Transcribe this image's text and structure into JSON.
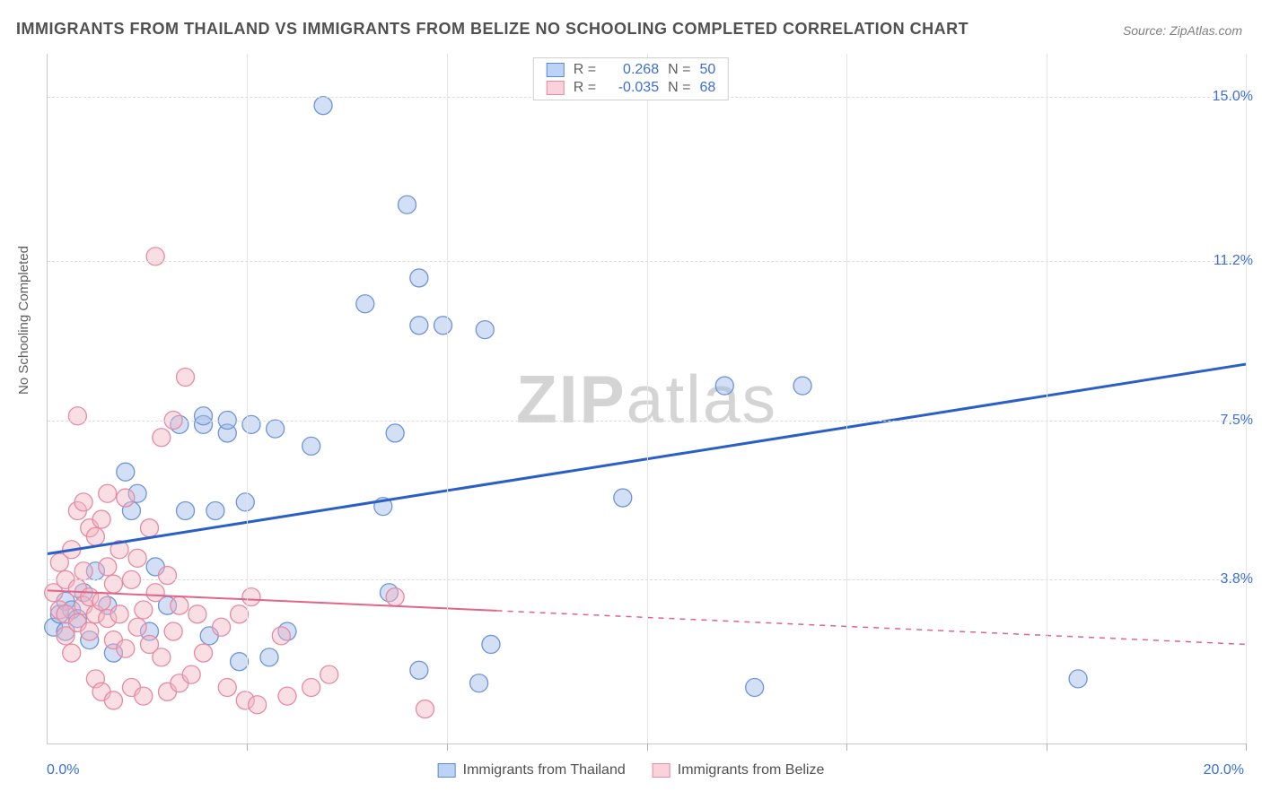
{
  "title": "IMMIGRANTS FROM THAILAND VS IMMIGRANTS FROM BELIZE NO SCHOOLING COMPLETED CORRELATION CHART",
  "source": "Source: ZipAtlas.com",
  "watermark_zip": "ZIP",
  "watermark_rest": "atlas",
  "y_axis_label": "No Schooling Completed",
  "chart": {
    "type": "scatter-with-regression",
    "xlim": [
      0,
      20
    ],
    "ylim": [
      0,
      16
    ],
    "y_ticks": [
      3.8,
      7.5,
      11.2,
      15.0
    ],
    "x_ticks_edges": {
      "min": "0.0%",
      "max": "20.0%"
    },
    "x_axis_grid_at": [
      3.33,
      6.67,
      10.0,
      13.33,
      16.67,
      20.0
    ],
    "background_color": "#ffffff",
    "grid_color": "#dcdcdc",
    "axis_color": "#c8c8c8",
    "tick_label_color": "#3b6fd6",
    "tick_fontsize": 16,
    "title_fontsize": 18,
    "marker_radius": 10,
    "marker_opacity": 0.45,
    "series": [
      {
        "name": "thailand",
        "label": "Immigrants from Thailand",
        "color_fill": "#9cb9e8",
        "color_stroke": "#6e95d6",
        "R": 0.268,
        "N": 50,
        "regression": {
          "y_at_x0": 4.4,
          "y_at_x20": 8.8,
          "color": "#2b5fc8",
          "width": 3,
          "solid_xmax": 20
        },
        "points": [
          [
            0.1,
            2.7
          ],
          [
            0.2,
            3.0
          ],
          [
            0.3,
            3.3
          ],
          [
            0.3,
            2.6
          ],
          [
            0.4,
            3.1
          ],
          [
            0.5,
            2.9
          ],
          [
            0.6,
            3.5
          ],
          [
            1.5,
            5.8
          ],
          [
            1.4,
            5.4
          ],
          [
            1.3,
            6.3
          ],
          [
            2.3,
            5.4
          ],
          [
            2.8,
            5.4
          ],
          [
            2.2,
            7.4
          ],
          [
            2.6,
            7.4
          ],
          [
            3.0,
            7.2
          ],
          [
            2.6,
            7.6
          ],
          [
            3.0,
            7.5
          ],
          [
            3.4,
            7.4
          ],
          [
            3.3,
            5.6
          ],
          [
            3.8,
            7.3
          ],
          [
            4.4,
            6.9
          ],
          [
            1.8,
            4.1
          ],
          [
            2.7,
            2.5
          ],
          [
            3.2,
            1.9
          ],
          [
            3.7,
            2.0
          ],
          [
            4.0,
            2.6
          ],
          [
            4.6,
            14.8
          ],
          [
            5.3,
            10.2
          ],
          [
            6.0,
            12.5
          ],
          [
            6.2,
            9.7
          ],
          [
            5.7,
            3.5
          ],
          [
            5.6,
            5.5
          ],
          [
            5.8,
            7.2
          ],
          [
            6.2,
            10.8
          ],
          [
            6.6,
            9.7
          ],
          [
            6.2,
            1.7
          ],
          [
            7.4,
            2.3
          ],
          [
            7.3,
            9.6
          ],
          [
            7.2,
            1.4
          ],
          [
            9.6,
            5.7
          ],
          [
            11.3,
            8.3
          ],
          [
            12.6,
            8.3
          ],
          [
            0.8,
            4.0
          ],
          [
            1.0,
            3.2
          ],
          [
            0.7,
            2.4
          ],
          [
            1.1,
            2.1
          ],
          [
            1.7,
            2.6
          ],
          [
            2.0,
            3.2
          ],
          [
            17.2,
            1.5
          ],
          [
            11.8,
            1.3
          ]
        ]
      },
      {
        "name": "belize",
        "label": "Immigrants from Belize",
        "color_fill": "#f2b5c4",
        "color_stroke": "#e68aa3",
        "R": -0.035,
        "N": 68,
        "regression": {
          "y_at_x0": 3.55,
          "y_at_x20": 2.3,
          "color": "#e26487",
          "width": 2,
          "solid_xmax": 7.5
        },
        "points": [
          [
            0.1,
            3.5
          ],
          [
            0.2,
            3.1
          ],
          [
            0.2,
            4.2
          ],
          [
            0.3,
            3.8
          ],
          [
            0.3,
            3.0
          ],
          [
            0.3,
            2.5
          ],
          [
            0.4,
            4.5
          ],
          [
            0.4,
            2.1
          ],
          [
            0.5,
            5.4
          ],
          [
            0.5,
            3.6
          ],
          [
            0.5,
            2.8
          ],
          [
            0.5,
            7.6
          ],
          [
            0.6,
            4.0
          ],
          [
            0.6,
            3.2
          ],
          [
            0.6,
            5.6
          ],
          [
            0.7,
            3.4
          ],
          [
            0.7,
            2.6
          ],
          [
            0.7,
            5.0
          ],
          [
            0.8,
            4.8
          ],
          [
            0.8,
            3.0
          ],
          [
            0.8,
            1.5
          ],
          [
            0.9,
            5.2
          ],
          [
            0.9,
            3.3
          ],
          [
            0.9,
            1.2
          ],
          [
            1.0,
            4.1
          ],
          [
            1.0,
            2.9
          ],
          [
            1.0,
            5.8
          ],
          [
            1.1,
            3.7
          ],
          [
            1.1,
            2.4
          ],
          [
            1.1,
            1.0
          ],
          [
            1.2,
            4.5
          ],
          [
            1.2,
            3.0
          ],
          [
            1.3,
            5.7
          ],
          [
            1.3,
            2.2
          ],
          [
            1.4,
            3.8
          ],
          [
            1.4,
            1.3
          ],
          [
            1.5,
            4.3
          ],
          [
            1.5,
            2.7
          ],
          [
            1.6,
            3.1
          ],
          [
            1.6,
            1.1
          ],
          [
            1.7,
            5.0
          ],
          [
            1.7,
            2.3
          ],
          [
            1.8,
            11.3
          ],
          [
            1.8,
            3.5
          ],
          [
            1.9,
            7.1
          ],
          [
            1.9,
            2.0
          ],
          [
            2.0,
            1.2
          ],
          [
            2.0,
            3.9
          ],
          [
            2.1,
            7.5
          ],
          [
            2.1,
            2.6
          ],
          [
            2.2,
            1.4
          ],
          [
            2.2,
            3.2
          ],
          [
            2.3,
            8.5
          ],
          [
            2.4,
            1.6
          ],
          [
            2.5,
            3.0
          ],
          [
            2.6,
            2.1
          ],
          [
            2.9,
            2.7
          ],
          [
            3.0,
            1.3
          ],
          [
            3.2,
            3.0
          ],
          [
            3.3,
            1.0
          ],
          [
            3.4,
            3.4
          ],
          [
            3.5,
            0.9
          ],
          [
            3.9,
            2.5
          ],
          [
            4.0,
            1.1
          ],
          [
            4.4,
            1.3
          ],
          [
            4.7,
            1.6
          ],
          [
            6.3,
            0.8
          ],
          [
            5.8,
            3.4
          ]
        ]
      }
    ]
  },
  "legend_top": {
    "r_label": "R =",
    "n_label": "N ="
  }
}
